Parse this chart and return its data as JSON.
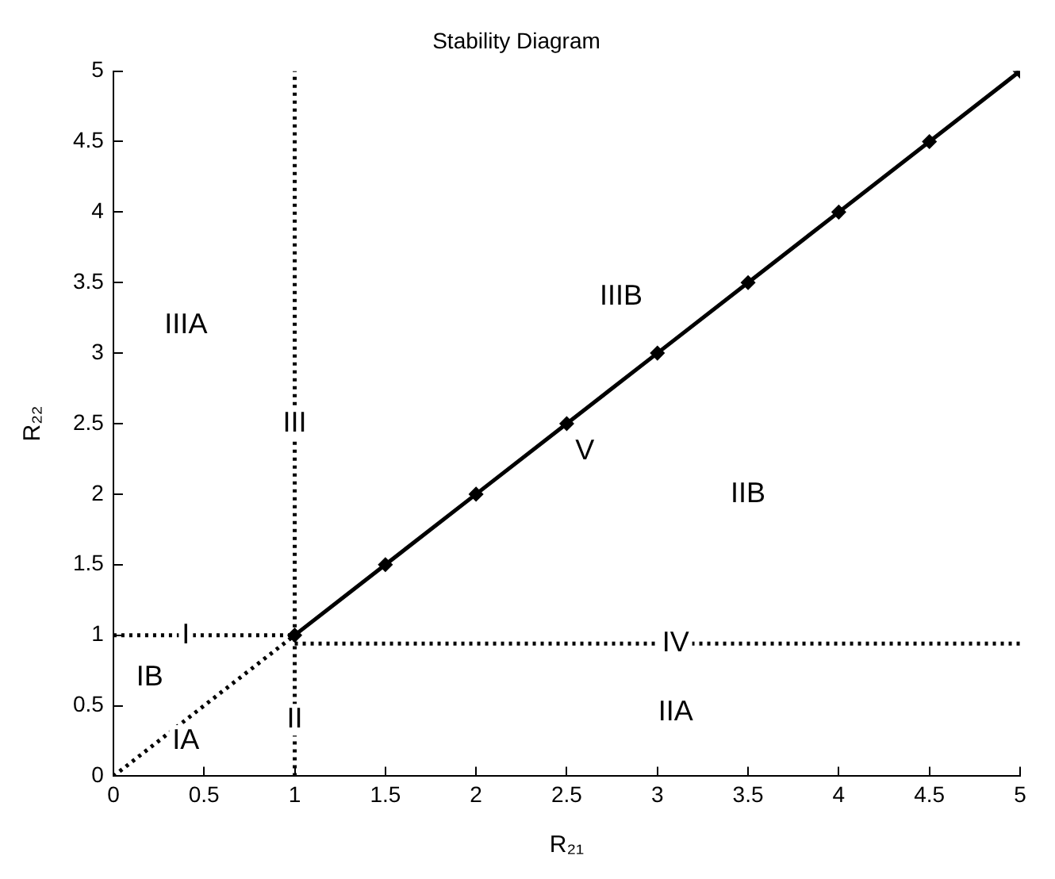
{
  "chart_data": {
    "type": "line",
    "title": "Stability Diagram",
    "xlabel": "R₂₁",
    "ylabel": "R₂₂",
    "xlim": [
      0,
      5
    ],
    "xticks": [
      0,
      0.5,
      1,
      1.5,
      2,
      2.5,
      3,
      3.5,
      4,
      4.5,
      5
    ],
    "ylim": [
      0,
      5
    ],
    "yticks": [
      0,
      0.5,
      1,
      1.5,
      2,
      2.5,
      3,
      3.5,
      4,
      4.5,
      5
    ],
    "grid": false,
    "legend": false,
    "series": [
      {
        "color": "#000000",
        "x": [
          0,
          1
        ],
        "values": [
          1,
          1
        ],
        "line_style": "dotted"
      },
      {
        "color": "#000000",
        "x": [
          1,
          1
        ],
        "values": [
          0,
          1
        ],
        "line_style": "dotted"
      },
      {
        "color": "#000000",
        "x": [
          1,
          1
        ],
        "values": [
          1,
          5
        ],
        "line_style": "dotted"
      },
      {
        "color": "#000000",
        "x": [
          1,
          5
        ],
        "values": [
          0.94,
          0.94
        ],
        "line_style": "dotted"
      },
      {
        "color": "#000000",
        "x": [
          0,
          1
        ],
        "values": [
          0,
          1
        ],
        "line_style": "dotted"
      },
      {
        "color": "#000000",
        "x": [
          1,
          1.5,
          2,
          2.5,
          3,
          3.5,
          4,
          4.5,
          5
        ],
        "values": [
          1,
          1.5,
          2,
          2.5,
          3,
          3.5,
          4,
          4.5,
          5
        ],
        "line_style": "solid",
        "marker": "diamond"
      }
    ],
    "annotations": [
      {
        "text": "I",
        "x": 0.4,
        "y": 1
      },
      {
        "text": "II",
        "x": 1,
        "y": 0.4
      },
      {
        "text": "III",
        "x": 1,
        "y": 2.5
      },
      {
        "text": "IV",
        "x": 3.1,
        "y": 0.94
      },
      {
        "text": "V",
        "x": 2.6,
        "y": 2.3
      },
      {
        "text": "IIIA",
        "x": 0.4,
        "y": 3.2
      },
      {
        "text": "IIIB",
        "x": 2.8,
        "y": 3.4
      },
      {
        "text": "IIB",
        "x": 3.5,
        "y": 2
      },
      {
        "text": "IB",
        "x": 0.2,
        "y": 0.7
      },
      {
        "text": "IA",
        "x": 0.4,
        "y": 0.25
      },
      {
        "text": "IIA",
        "x": 3.1,
        "y": 0.45
      }
    ]
  }
}
